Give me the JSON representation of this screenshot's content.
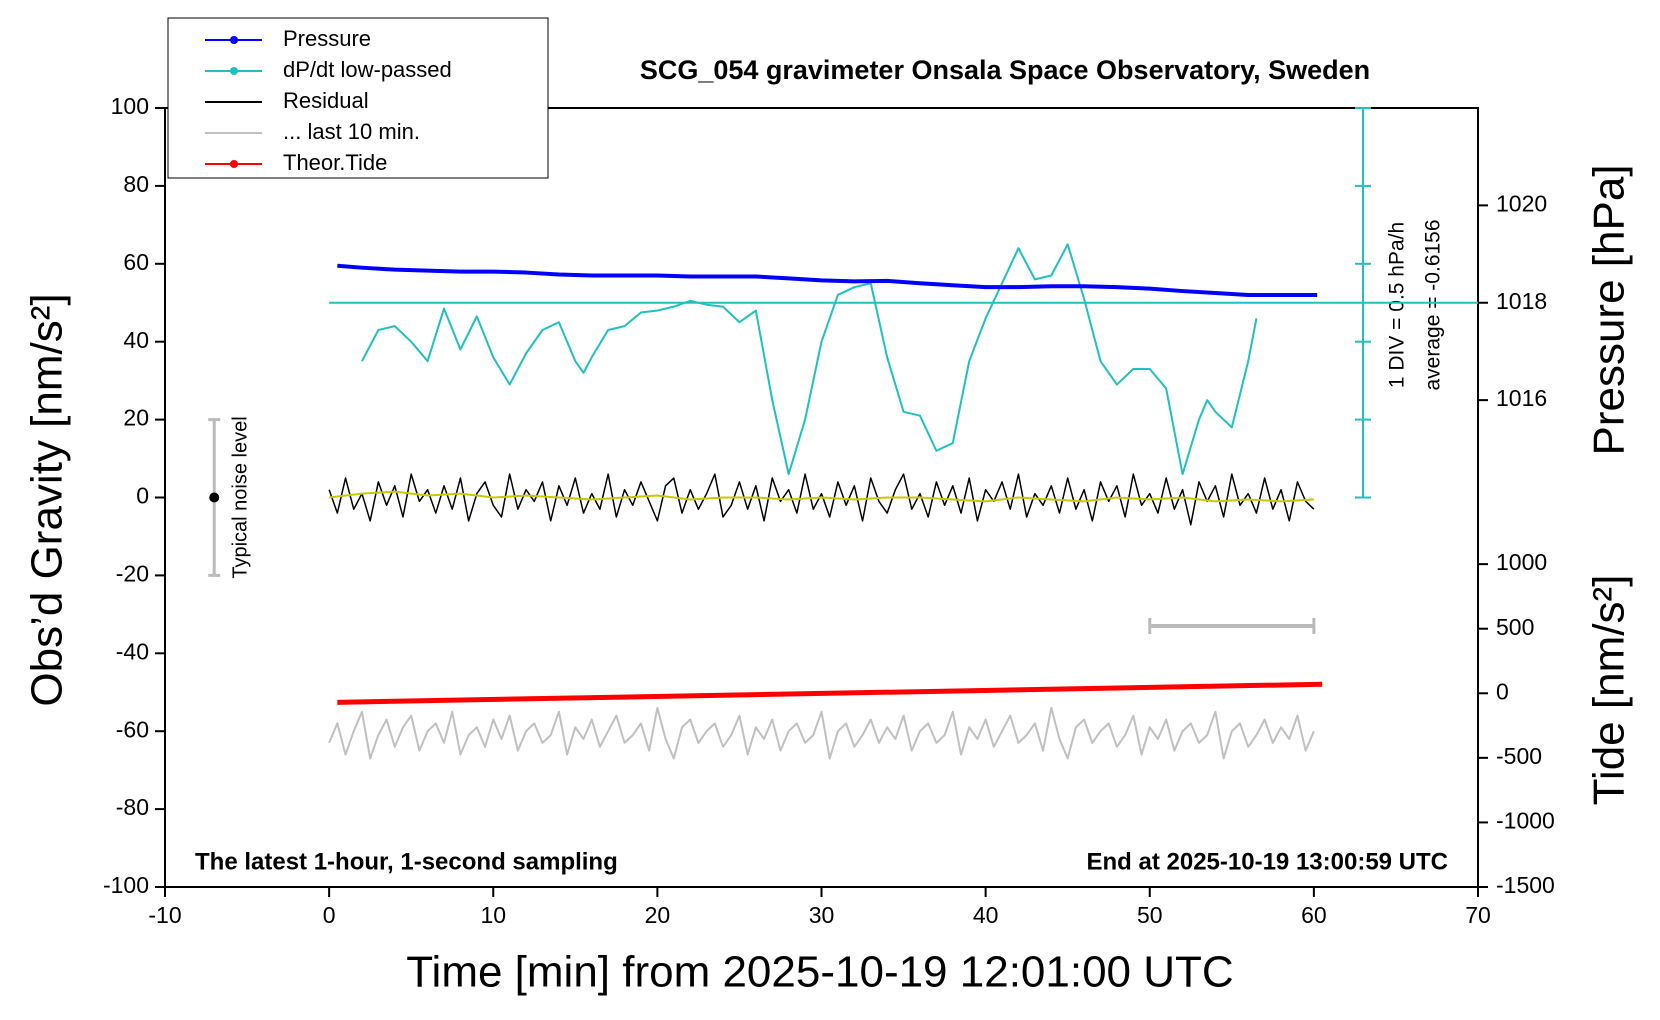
{
  "chart_data": {
    "type": "line",
    "title": "SCG_054 gravimeter Onsala Space Observatory, Sweden",
    "x_label": "Time [min] from 2025-10-19 12:01:00 UTC",
    "y_label": "Obs’d Gravity [nm/s²]",
    "y2_label": "Pressure [hPa]",
    "y3_label": "Tide [nm/s²]",
    "annotations": [
      "The latest 1-hour, 1-second sampling",
      "End at 2025-10-19 13:00:59 UTC",
      "1 DIV = 0.5 hPa/h",
      "average = -0.6156"
    ],
    "xlim": [
      -10,
      70
    ],
    "xticks": [
      -10,
      0,
      10,
      20,
      30,
      40,
      50,
      60,
      70
    ],
    "ylim": [
      -100,
      100
    ],
    "yticks": [
      -100,
      -80,
      -60,
      -40,
      -20,
      0,
      20,
      40,
      60,
      80,
      100
    ],
    "y2lim": [
      1006,
      1022
    ],
    "y2ticks": [
      1016,
      1018,
      1020
    ],
    "y3lim": [
      -1500,
      4532
    ],
    "y3ticks": [
      -1500,
      -1000,
      -500,
      0,
      500,
      1000
    ],
    "x": [
      0,
      0.5,
      1,
      1.5,
      2,
      2.5,
      3,
      3.5,
      4,
      4.5,
      5,
      5.5,
      6,
      6.5,
      7,
      7.5,
      8,
      8.5,
      9,
      9.5,
      10,
      10.5,
      11,
      11.5,
      12,
      12.5,
      13,
      13.5,
      14,
      14.5,
      15,
      15.5,
      16,
      16.5,
      17,
      17.5,
      18,
      18.5,
      19,
      19.5,
      20,
      20.5,
      21,
      21.5,
      22,
      22.5,
      23,
      23.5,
      24,
      24.5,
      25,
      25.5,
      26,
      26.5,
      27,
      27.5,
      28,
      28.5,
      29,
      29.5,
      30,
      30.5,
      31,
      31.5,
      32,
      32.5,
      33,
      33.5,
      34,
      34.5,
      35,
      35.5,
      36,
      36.5,
      37,
      37.5,
      38,
      38.5,
      39,
      39.5,
      40,
      40.5,
      41,
      41.5,
      42,
      42.5,
      43,
      43.5,
      44,
      44.5,
      45,
      45.5,
      46,
      46.5,
      47,
      47.5,
      48,
      48.5,
      49,
      49.5,
      50,
      50.5,
      51,
      51.5,
      52,
      52.5,
      53,
      53.5,
      54,
      54.5,
      55,
      55.5,
      56,
      56.5,
      57,
      57.5,
      58,
      58.5,
      59,
      59.5,
      60
    ],
    "series": [
      {
        "name": "Pressure",
        "color": "#0000ff",
        "marker": true,
        "axis": "y2",
        "width": 4,
        "x": [
          0.5,
          2,
          4,
          6,
          8,
          10,
          12,
          14,
          16,
          18,
          20,
          22,
          24,
          26,
          28,
          30,
          32,
          34,
          36,
          38,
          40,
          42,
          44,
          46,
          48,
          50,
          52,
          54,
          56,
          58,
          60.2
        ],
        "values": [
          1018.76,
          1018.72,
          1018.68,
          1018.66,
          1018.64,
          1018.64,
          1018.62,
          1018.58,
          1018.56,
          1018.56,
          1018.56,
          1018.54,
          1018.54,
          1018.54,
          1018.5,
          1018.46,
          1018.44,
          1018.45,
          1018.4,
          1018.36,
          1018.32,
          1018.32,
          1018.34,
          1018.34,
          1018.32,
          1018.29,
          1018.24,
          1018.2,
          1018.16,
          1018.16,
          1018.16
        ]
      },
      {
        "name": "dP/dt low-passed",
        "color": "#20c0c0",
        "marker": true,
        "width": 2,
        "x": [
          2,
          3,
          4,
          5,
          6,
          7,
          8,
          9,
          10,
          11,
          12,
          13,
          14,
          15,
          15.5,
          16,
          17,
          18,
          19,
          20,
          21,
          22,
          23,
          24,
          25,
          26,
          27,
          28,
          29,
          30,
          31,
          32,
          33,
          34,
          35,
          36,
          37,
          38,
          39,
          40,
          41,
          42,
          43,
          44,
          45,
          46,
          47,
          48,
          49,
          50,
          51,
          52,
          53,
          53.5,
          54,
          55,
          56,
          56.5
        ],
        "values": [
          35,
          43,
          44,
          40,
          35,
          48.5,
          38,
          46.5,
          36,
          29,
          37,
          43,
          45,
          35,
          32,
          36,
          43,
          44,
          47.5,
          48,
          49,
          50.5,
          49.5,
          49,
          45,
          48,
          25,
          6,
          20,
          40,
          52,
          54,
          55,
          36,
          22,
          21,
          12,
          14,
          35,
          46,
          55,
          64,
          56,
          57,
          65,
          51,
          35,
          29,
          33,
          33,
          28,
          6,
          20,
          25,
          22,
          18,
          35,
          46
        ]
      },
      {
        "name": "Residual",
        "color": "#000000",
        "marker": false,
        "width": 1.5,
        "values": [
          2,
          -4,
          5,
          -3,
          1,
          -6,
          4,
          -2,
          3,
          -5,
          6,
          -1,
          2,
          -4,
          3,
          -3,
          5,
          -6,
          1,
          4,
          -2,
          -5,
          6,
          -3,
          2,
          -1,
          4,
          -6,
          3,
          -2,
          5,
          -4,
          1,
          -3,
          6,
          -5,
          2,
          -2,
          4,
          -1,
          -6,
          3,
          5,
          -4,
          2,
          -3,
          1,
          6,
          -5,
          -2,
          4,
          -3,
          3,
          -6,
          5,
          -1,
          2,
          -4,
          6,
          -3,
          1,
          -5,
          4,
          -2,
          3,
          -6,
          5,
          -1,
          -4,
          2,
          6,
          -3,
          1,
          -5,
          4,
          -2,
          3,
          -4,
          5,
          -6,
          2,
          -1,
          4,
          -3,
          6,
          -5,
          1,
          -2,
          3,
          -4,
          5,
          -3,
          2,
          -6,
          4,
          -1,
          3,
          -5,
          6,
          -2,
          1,
          -4,
          5,
          -3,
          2,
          -7,
          4,
          -1,
          3,
          -5,
          6,
          -2,
          1,
          -4,
          5,
          -3,
          2,
          -6,
          4,
          -1,
          -3
        ]
      },
      {
        "color": "#c8c800",
        "marker": false,
        "width": 2,
        "x": [
          0,
          2,
          4,
          6,
          8,
          10,
          12,
          14,
          16,
          18,
          20,
          22,
          24,
          26,
          28,
          30,
          32,
          34,
          36,
          38,
          40,
          42,
          44,
          46,
          48,
          50,
          52,
          54,
          56,
          58,
          60
        ],
        "values": [
          0,
          1,
          1.5,
          0.5,
          1,
          0,
          0.5,
          0,
          -0.5,
          0,
          0.5,
          -0.5,
          0,
          0,
          -0.5,
          0,
          -0.5,
          0,
          0,
          -0.5,
          -1,
          0,
          -0.5,
          -1,
          0,
          -0.5,
          0,
          -1,
          -0.5,
          -1,
          -0.5
        ]
      },
      {
        "name": "... last 10 min.",
        "color": "#c0c0c0",
        "marker": false,
        "width": 2,
        "values": [
          -63,
          -58,
          -66,
          -60,
          -55,
          -67,
          -61,
          -57,
          -64,
          -59,
          -56,
          -65,
          -60,
          -58,
          -63,
          -55,
          -66,
          -61,
          -59,
          -64,
          -57,
          -62,
          -56,
          -65,
          -60,
          -58,
          -63,
          -61,
          -55,
          -66,
          -59,
          -62,
          -57,
          -64,
          -60,
          -56,
          -63,
          -61,
          -58,
          -65,
          -54,
          -62,
          -67,
          -59,
          -57,
          -63,
          -60,
          -58,
          -64,
          -61,
          -56,
          -66,
          -59,
          -62,
          -57,
          -65,
          -60,
          -58,
          -63,
          -61,
          -55,
          -67,
          -60,
          -58,
          -64,
          -61,
          -57,
          -63,
          -59,
          -62,
          -56,
          -65,
          -60,
          -58,
          -63,
          -61,
          -55,
          -66,
          -59,
          -62,
          -57,
          -64,
          -60,
          -56,
          -63,
          -61,
          -58,
          -65,
          -54,
          -62,
          -67,
          -59,
          -57,
          -63,
          -60,
          -58,
          -64,
          -61,
          -56,
          -66,
          -59,
          -62,
          -57,
          -65,
          -60,
          -58,
          -63,
          -61,
          -55,
          -67,
          -60,
          -58,
          -64,
          -61,
          -57,
          -63,
          -59,
          -62,
          -56,
          -65,
          -60
        ]
      },
      {
        "name": "Theor.Tide",
        "color": "#ff0000",
        "marker": true,
        "axis": "y3",
        "width": 5,
        "x": [
          0.5,
          60.5
        ],
        "values": [
          -70,
          70
        ]
      }
    ],
    "dpdt_baseline": 50,
    "noise_bar": {
      "label": "Typical noise level",
      "x": -7,
      "value": 0,
      "error": 20
    },
    "window_bar": {
      "x": [
        50,
        60
      ],
      "y": -33
    }
  }
}
